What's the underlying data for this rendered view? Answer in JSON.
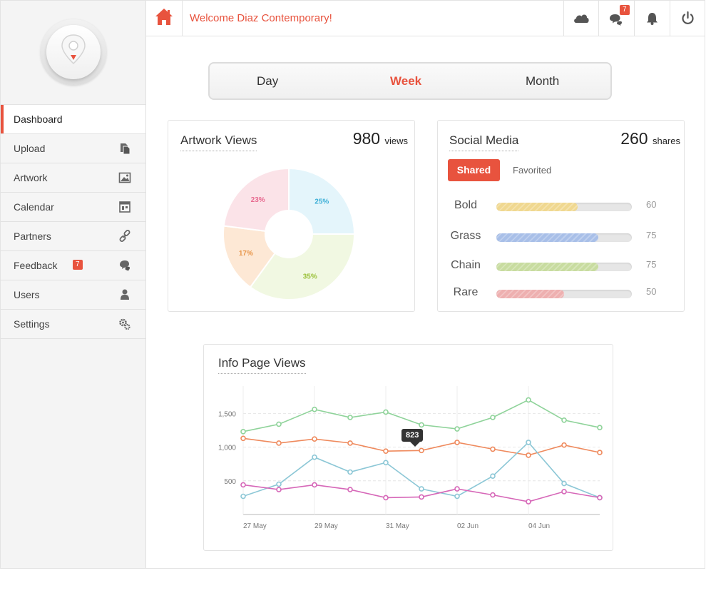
{
  "header": {
    "welcome": "Welcome Diaz Contemporary!",
    "messages_badge": "7"
  },
  "sidebar": {
    "items": [
      {
        "label": "Dashboard"
      },
      {
        "label": "Upload"
      },
      {
        "label": "Artwork"
      },
      {
        "label": "Calendar"
      },
      {
        "label": "Partners"
      },
      {
        "label": "Feedback",
        "badge": "7"
      },
      {
        "label": "Users"
      },
      {
        "label": "Settings"
      }
    ]
  },
  "period": {
    "options": [
      "Day",
      "Week",
      "Month"
    ],
    "selected": "Week"
  },
  "artwork_views": {
    "title": "Artwork Views",
    "count": "980",
    "unit": "views"
  },
  "social_media": {
    "title": "Social Media",
    "count": "260",
    "unit": "shares",
    "tabs": [
      "Shared",
      "Favorited"
    ],
    "active_tab": "Shared",
    "bars": [
      {
        "label": "Bold",
        "value": 60,
        "display": "60",
        "color": "#f0d890"
      },
      {
        "label": "Grass",
        "value": 75,
        "display": "75",
        "color": "#a8bfe8"
      },
      {
        "label": "Chain",
        "value": 75,
        "display": "75",
        "color": "#c8dca0"
      },
      {
        "label": "Rare",
        "value": 50,
        "display": "50",
        "color": "#eeb0b0"
      }
    ]
  },
  "info_page_views": {
    "title": "Info Page Views",
    "tooltip": "823"
  },
  "colors": {
    "accent": "#e8533e",
    "green": "#8fd39a",
    "orange": "#ef8a5d",
    "blue": "#8cc7d6",
    "pink": "#d667b8"
  },
  "chart_data": [
    {
      "type": "pie",
      "title": "Artwork Views",
      "labels": [
        "25%",
        "35%",
        "17%",
        "23%"
      ],
      "values": [
        25,
        35,
        17,
        23
      ],
      "colors": [
        "#e4f5fb",
        "#f1f8e2",
        "#fde8d5",
        "#fbe3e8"
      ],
      "text_colors": [
        "#3aaed6",
        "#9bc13a",
        "#e8964a",
        "#e86a90"
      ],
      "donut": true
    },
    {
      "type": "line",
      "title": "Info Page Views",
      "xlabel": "",
      "ylabel": "",
      "x_ticks": [
        "27 May",
        "29 May",
        "31 May",
        "02 Jun",
        "04 Jun"
      ],
      "y_ticks": [
        "500",
        "1,000",
        "1,500"
      ],
      "ylim": [
        0,
        1800
      ],
      "grid": true,
      "series": [
        {
          "values": [
            1230,
            1340,
            1560,
            1440,
            1520,
            1330,
            1270,
            1440,
            1700,
            1400,
            1290
          ],
          "color": "#8fd39a"
        },
        {
          "values": [
            1130,
            1060,
            1120,
            1060,
            940,
            950,
            1070,
            970,
            880,
            1030,
            920
          ],
          "color": "#ef8a5d"
        },
        {
          "values": [
            270,
            450,
            850,
            630,
            770,
            380,
            270,
            570,
            1070,
            460,
            250
          ],
          "color": "#8cc7d6"
        },
        {
          "values": [
            440,
            370,
            440,
            370,
            250,
            260,
            380,
            290,
            190,
            340,
            250
          ],
          "color": "#d667b8"
        }
      ]
    }
  ]
}
